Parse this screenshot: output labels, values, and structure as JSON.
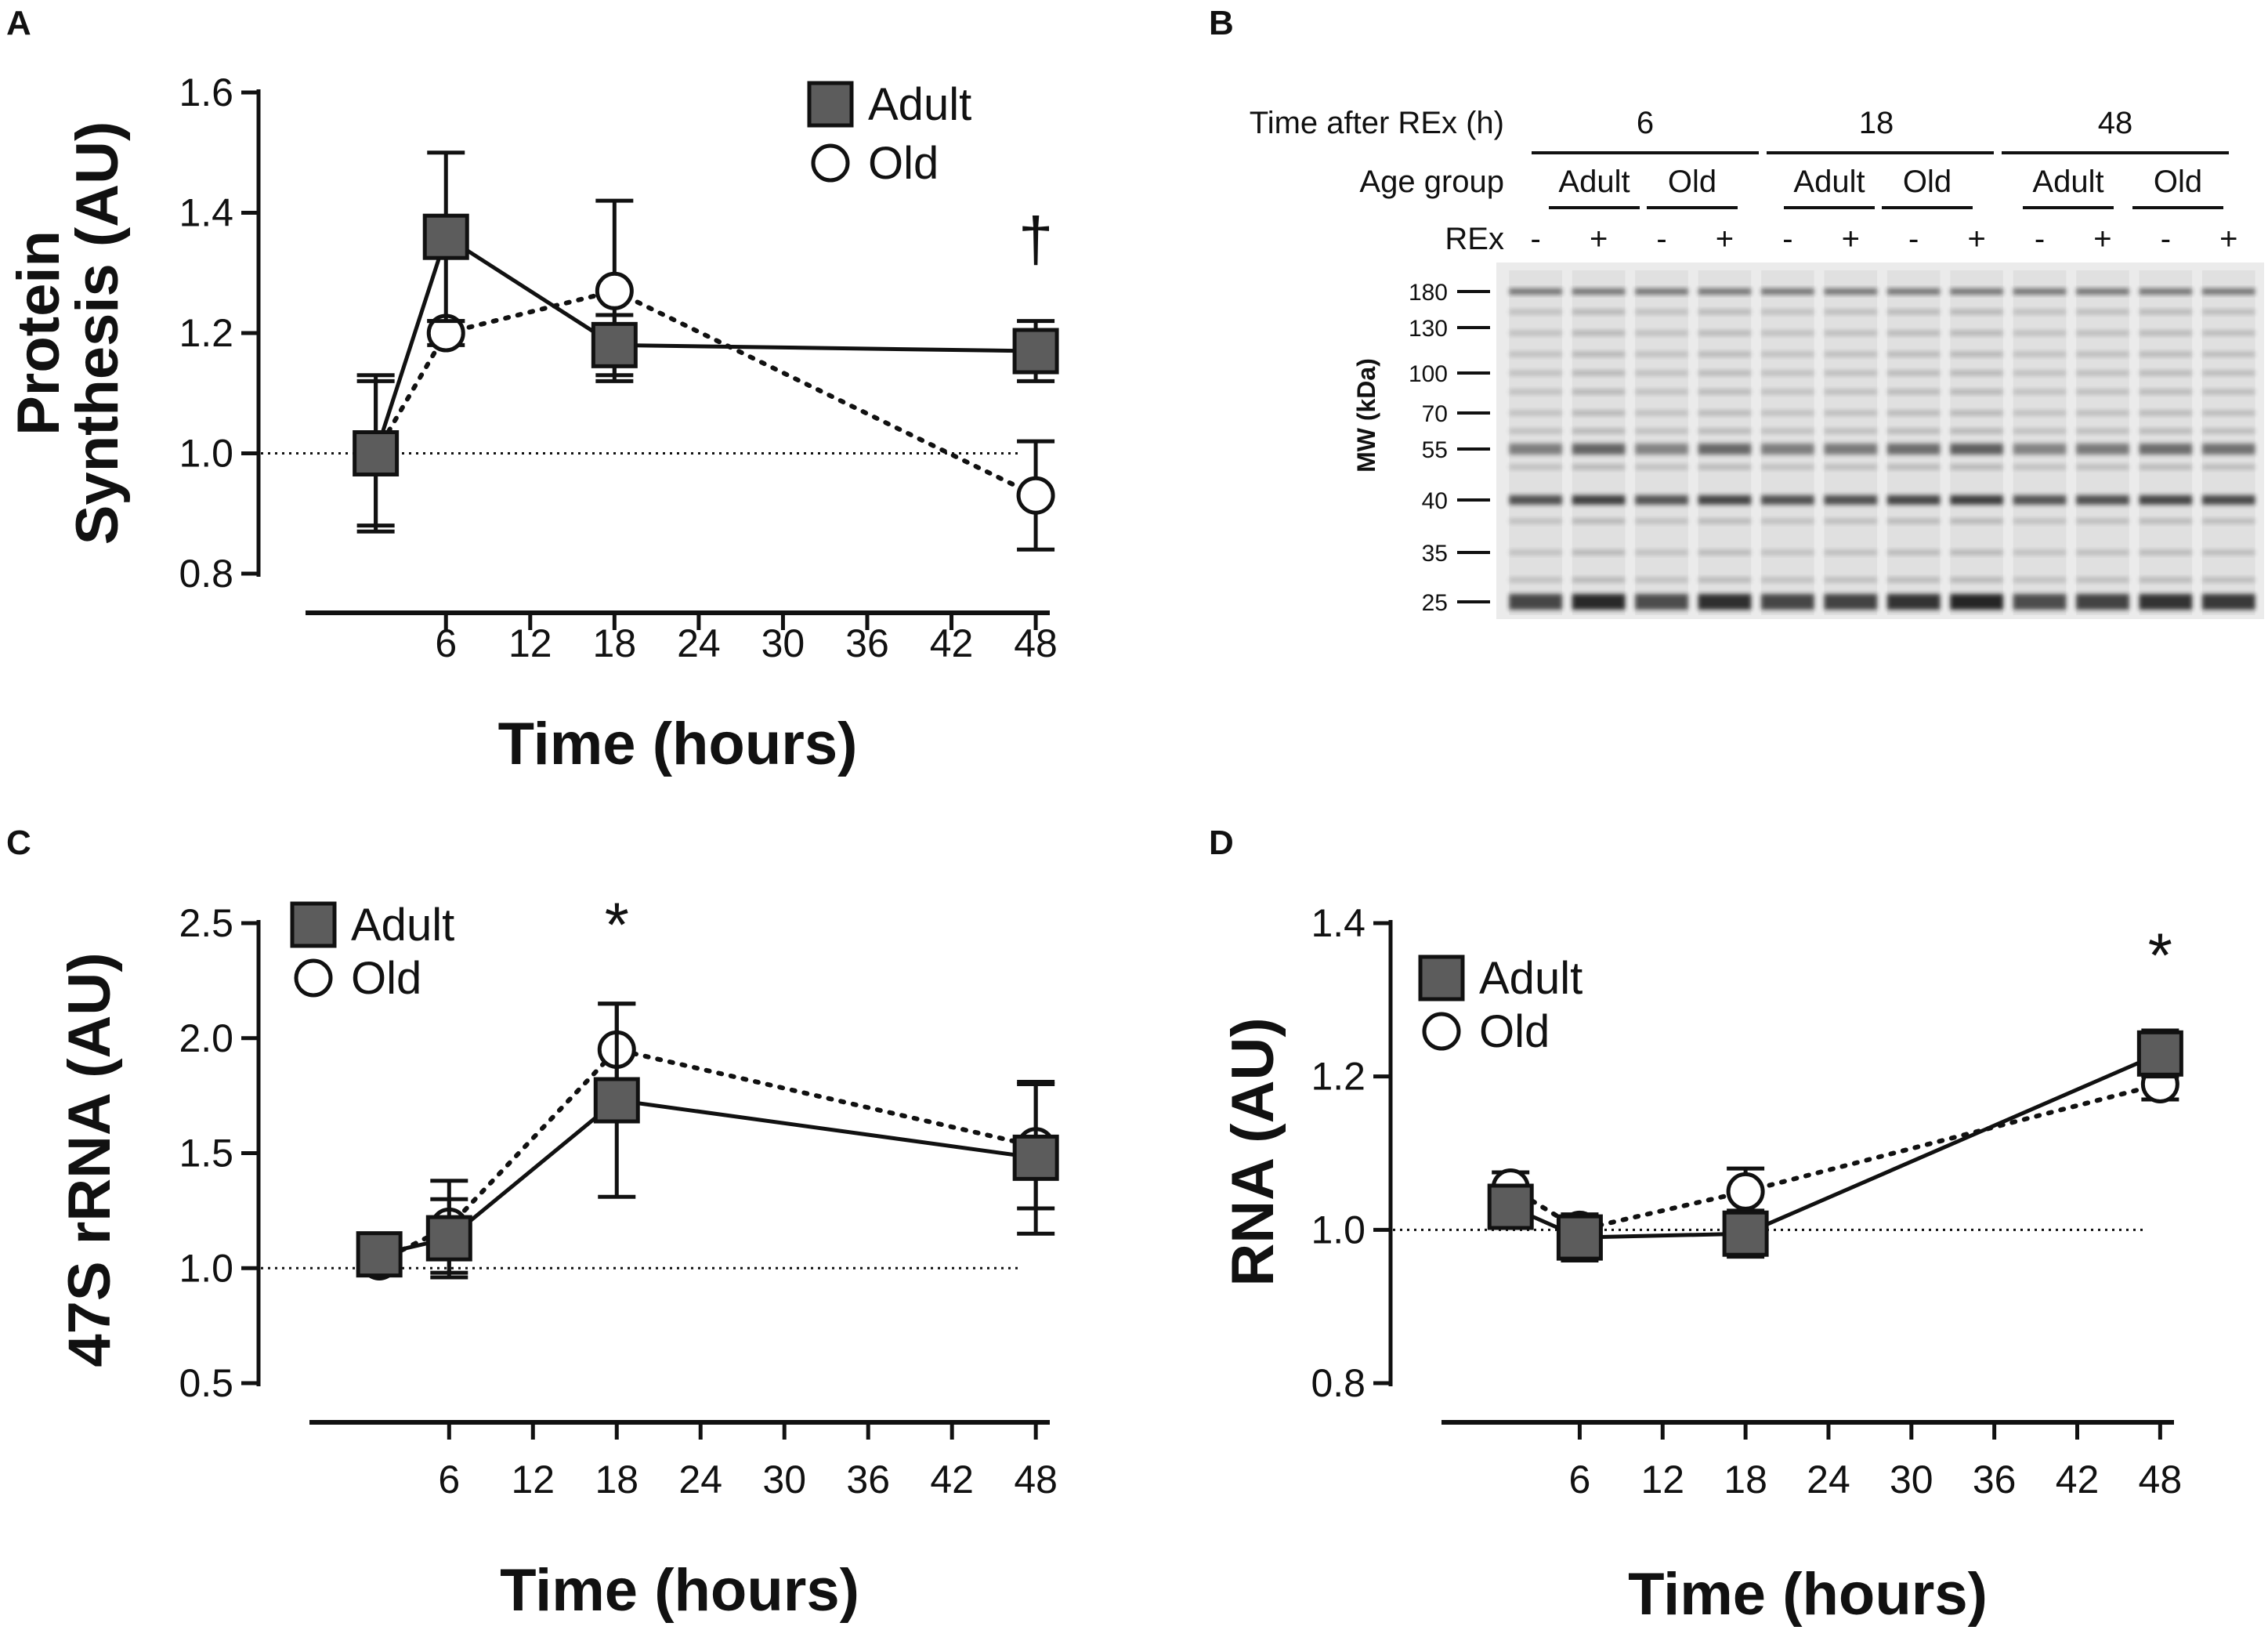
{
  "colors": {
    "adult_fill": "#5c5c5c",
    "old_fill": "#ffffff",
    "line": "#111111",
    "gel_bg": "#ebebeb",
    "band": "#1c1c1c"
  },
  "icons": {
    "adult_marker": "filled-square-marker-icon",
    "old_marker": "open-circle-marker-icon"
  },
  "chart_data": [
    {
      "panel": "A",
      "type": "line",
      "ylabel_line1": "Protein",
      "ylabel_line2": "Synthesis (AU)",
      "xlabel": "Time (hours)",
      "ylim": [
        0.8,
        1.6
      ],
      "yticks": [
        0.8,
        1.0,
        1.2,
        1.4,
        1.6
      ],
      "ytick_labels": [
        "0.8",
        "1.0",
        "1.2",
        "1.4",
        "1.6"
      ],
      "xlim": [
        -4,
        49
      ],
      "xticks": [
        6,
        12,
        18,
        24,
        30,
        36,
        42,
        48
      ],
      "xtick_labels": [
        "6",
        "12",
        "18",
        "24",
        "30",
        "36",
        "42",
        "48"
      ],
      "baseline": 1.0,
      "legend": [
        "Adult",
        "Old"
      ],
      "legend_position": "top-right",
      "series": [
        {
          "name": "Adult",
          "x": [
            1,
            6,
            18,
            48
          ],
          "values": [
            1.0,
            1.36,
            1.18,
            1.17
          ],
          "err": [
            0.13,
            0.14,
            0.05,
            0.05
          ]
        },
        {
          "name": "Old",
          "x": [
            1,
            6,
            18,
            48
          ],
          "values": [
            1.0,
            1.2,
            1.27,
            0.93
          ],
          "err": [
            0.12,
            0.02,
            0.15,
            0.09
          ]
        }
      ],
      "annotations": [
        {
          "text": "†",
          "x": 48,
          "y": 1.32
        }
      ]
    },
    {
      "panel": "C",
      "type": "line",
      "ylabel": "47S rRNA (AU)",
      "xlabel": "Time (hours)",
      "ylim": [
        0.5,
        2.5
      ],
      "yticks": [
        0.5,
        1.0,
        1.5,
        2.0,
        2.5
      ],
      "ytick_labels": [
        "0.5",
        "1.0",
        "1.5",
        "2.0",
        "2.5"
      ],
      "xlim": [
        -4,
        49
      ],
      "xticks": [
        6,
        12,
        18,
        24,
        30,
        36,
        42,
        48
      ],
      "xtick_labels": [
        "6",
        "12",
        "18",
        "24",
        "30",
        "36",
        "42",
        "48"
      ],
      "baseline": 1.0,
      "legend": [
        "Adult",
        "Old"
      ],
      "legend_position": "top-left",
      "series": [
        {
          "name": "Adult",
          "x": [
            1,
            6,
            18,
            48
          ],
          "values": [
            1.06,
            1.13,
            1.73,
            1.48
          ],
          "err": [
            0.03,
            0.17,
            0.42,
            0.33
          ]
        },
        {
          "name": "Old",
          "x": [
            1,
            6,
            18,
            48
          ],
          "values": [
            1.03,
            1.18,
            1.95,
            1.53
          ],
          "err": [
            0.02,
            0.2,
            0.2,
            0.27
          ]
        }
      ],
      "annotations": [
        {
          "text": "*",
          "x": 18,
          "y": 2.4
        }
      ]
    },
    {
      "panel": "D",
      "type": "line",
      "ylabel": "RNA (AU)",
      "xlabel": "Time (hours)",
      "ylim": [
        0.8,
        1.4
      ],
      "yticks": [
        0.8,
        1.0,
        1.2,
        1.4
      ],
      "ytick_labels": [
        "0.8",
        "1.0",
        "1.2",
        "1.4"
      ],
      "xlim": [
        -4,
        49
      ],
      "xticks": [
        6,
        12,
        18,
        24,
        30,
        36,
        42,
        48
      ],
      "xtick_labels": [
        "6",
        "12",
        "18",
        "24",
        "30",
        "36",
        "42",
        "48"
      ],
      "baseline": 1.0,
      "legend": [
        "Adult",
        "Old"
      ],
      "legend_position": "top-left",
      "series": [
        {
          "name": "Adult",
          "x": [
            1,
            6,
            18,
            48
          ],
          "values": [
            1.03,
            0.99,
            0.995,
            1.23
          ],
          "err": [
            0.02,
            0.03,
            0.03,
            0.03
          ]
        },
        {
          "name": "Old",
          "x": [
            1,
            6,
            18,
            48
          ],
          "values": [
            1.055,
            1.0,
            1.05,
            1.19
          ],
          "err": [
            0.02,
            0.02,
            0.03,
            0.02
          ]
        }
      ],
      "annotations": [
        {
          "text": "*",
          "x": 48,
          "y": 1.33
        }
      ]
    }
  ],
  "panel_b": {
    "letter": "B",
    "row_time_label": "Time after REx (h)",
    "row_age_label": "Age group",
    "row_rex_label": "REx",
    "time_groups": [
      "6",
      "18",
      "48"
    ],
    "age_groups": [
      "Adult",
      "Old",
      "Adult",
      "Old",
      "Adult",
      "Old"
    ],
    "rex_signs": [
      "-",
      "+",
      "-",
      "+",
      "-",
      "+",
      "-",
      "+",
      "-",
      "+",
      "-",
      "+"
    ],
    "mw_title": "MW (kDa)",
    "mw_markers": [
      "180",
      "130",
      "100",
      "70",
      "55",
      "40",
      "35",
      "25"
    ],
    "lane_intensity": [
      0.55,
      0.85,
      0.5,
      0.8,
      0.55,
      0.6,
      0.75,
      0.9,
      0.5,
      0.6,
      0.75,
      0.7
    ]
  }
}
